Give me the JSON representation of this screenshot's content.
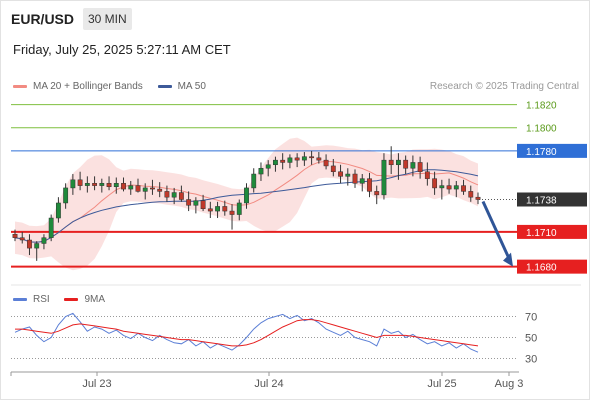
{
  "header": {
    "symbol": "EUR/USD",
    "timeframe": "30 MIN",
    "timestamp": "Friday, July 25, 2025 5:27:11 AM CET"
  },
  "legend_main": [
    {
      "label": "MA 20 + Bollinger Bands",
      "color": "#f28b82"
    },
    {
      "label": "MA 50",
      "color": "#3d5a99"
    }
  ],
  "copyright": "Research © 2025 Trading Central",
  "legend_rsi": [
    {
      "label": "RSI",
      "color": "#5b7fd6"
    },
    {
      "label": "9MA",
      "color": "#e62020"
    }
  ],
  "chart_data": [
    {
      "type": "candlestick",
      "title": "",
      "x_ticks": [
        "Jul 23",
        "Jul 24",
        "Jul 25",
        "Aug 3"
      ],
      "ylim": [
        1.1665,
        1.183
      ],
      "horizontal_lines": [
        {
          "value": 1.182,
          "label": "1.1820",
          "kind": "target",
          "color": "#7fbf3f"
        },
        {
          "value": 1.18,
          "label": "1.1800",
          "kind": "target",
          "color": "#7fbf3f"
        },
        {
          "value": 1.178,
          "label": "1.1780",
          "kind": "resistance",
          "color": "#2f6fd6"
        },
        {
          "value": 1.1738,
          "label": "1.1738",
          "kind": "last-price",
          "color": "#333333"
        },
        {
          "value": 1.171,
          "label": "1.1710",
          "kind": "pivot",
          "color": "#e62020"
        },
        {
          "value": 1.168,
          "label": "1.1680",
          "kind": "support",
          "color": "#e62020"
        }
      ],
      "forecast_arrow": {
        "from": 1.1738,
        "to": 1.168,
        "color": "#2f5597"
      },
      "series": [
        {
          "name": "MA 20 + Bollinger Bands",
          "color": "#f28b82"
        },
        {
          "name": "MA 50",
          "color": "#3d5a99"
        }
      ],
      "candles": [
        [
          1.1708,
          1.1712,
          1.1702,
          1.1705
        ],
        [
          1.1705,
          1.171,
          1.17,
          1.1703
        ],
        [
          1.1703,
          1.1708,
          1.169,
          1.1696
        ],
        [
          1.1696,
          1.1702,
          1.1685,
          1.17
        ],
        [
          1.17,
          1.1708,
          1.1695,
          1.1705
        ],
        [
          1.1705,
          1.1725,
          1.1702,
          1.1722
        ],
        [
          1.1722,
          1.174,
          1.1718,
          1.1735
        ],
        [
          1.1735,
          1.1752,
          1.173,
          1.1748
        ],
        [
          1.1748,
          1.176,
          1.1742,
          1.1755
        ],
        [
          1.1755,
          1.1762,
          1.1746,
          1.175
        ],
        [
          1.175,
          1.1758,
          1.1744,
          1.1752
        ],
        [
          1.1752,
          1.1758,
          1.1746,
          1.175
        ],
        [
          1.175,
          1.1756,
          1.1744,
          1.1752
        ],
        [
          1.1752,
          1.1758,
          1.1746,
          1.1749
        ],
        [
          1.1749,
          1.1757,
          1.1743,
          1.1752
        ],
        [
          1.1752,
          1.1757,
          1.1745,
          1.1747
        ],
        [
          1.1747,
          1.1754,
          1.1742,
          1.175
        ],
        [
          1.175,
          1.1756,
          1.1744,
          1.1745
        ],
        [
          1.1745,
          1.1752,
          1.1738,
          1.1748
        ],
        [
          1.1748,
          1.1755,
          1.1742,
          1.1747
        ],
        [
          1.1747,
          1.1753,
          1.174,
          1.1745
        ],
        [
          1.1745,
          1.175,
          1.1736,
          1.174
        ],
        [
          1.174,
          1.1748,
          1.1734,
          1.1744
        ],
        [
          1.1744,
          1.175,
          1.1736,
          1.1738
        ],
        [
          1.1738,
          1.1745,
          1.1728,
          1.1733
        ],
        [
          1.1733,
          1.174,
          1.1726,
          1.1737
        ],
        [
          1.1737,
          1.1742,
          1.1728,
          1.173
        ],
        [
          1.173,
          1.1736,
          1.1722,
          1.1728
        ],
        [
          1.1728,
          1.1736,
          1.1722,
          1.1732
        ],
        [
          1.1732,
          1.1737,
          1.1724,
          1.1728
        ],
        [
          1.1728,
          1.1734,
          1.1712,
          1.1725
        ],
        [
          1.1725,
          1.1738,
          1.172,
          1.1735
        ],
        [
          1.1735,
          1.1752,
          1.173,
          1.1748
        ],
        [
          1.1748,
          1.1765,
          1.1744,
          1.176
        ],
        [
          1.176,
          1.177,
          1.1754,
          1.1765
        ],
        [
          1.1765,
          1.1772,
          1.1758,
          1.1768
        ],
        [
          1.1768,
          1.1775,
          1.1762,
          1.1772
        ],
        [
          1.1772,
          1.1778,
          1.1764,
          1.177
        ],
        [
          1.177,
          1.1777,
          1.1765,
          1.1774
        ],
        [
          1.1774,
          1.1778,
          1.1766,
          1.1772
        ],
        [
          1.1772,
          1.1779,
          1.1767,
          1.1775
        ],
        [
          1.1775,
          1.178,
          1.1768,
          1.1774
        ],
        [
          1.1774,
          1.1779,
          1.1769,
          1.1772
        ],
        [
          1.1772,
          1.1777,
          1.1764,
          1.1767
        ],
        [
          1.1767,
          1.1773,
          1.1758,
          1.1762
        ],
        [
          1.1762,
          1.1768,
          1.1752,
          1.1758
        ],
        [
          1.1758,
          1.1765,
          1.175,
          1.176
        ],
        [
          1.176,
          1.1764,
          1.1748,
          1.1752
        ],
        [
          1.1752,
          1.176,
          1.1745,
          1.1756
        ],
        [
          1.1756,
          1.1761,
          1.174,
          1.1745
        ],
        [
          1.1745,
          1.175,
          1.1734,
          1.1742
        ],
        [
          1.1742,
          1.1778,
          1.1738,
          1.1772
        ],
        [
          1.1772,
          1.1784,
          1.176,
          1.1768
        ],
        [
          1.1768,
          1.1778,
          1.1755,
          1.1772
        ],
        [
          1.1772,
          1.1776,
          1.176,
          1.1765
        ],
        [
          1.1765,
          1.1776,
          1.1758,
          1.177
        ],
        [
          1.177,
          1.1775,
          1.1756,
          1.1762
        ],
        [
          1.1762,
          1.177,
          1.175,
          1.1756
        ],
        [
          1.1756,
          1.1762,
          1.1742,
          1.1748
        ],
        [
          1.1748,
          1.1755,
          1.1738,
          1.175
        ],
        [
          1.175,
          1.1756,
          1.1743,
          1.1747
        ],
        [
          1.1747,
          1.1754,
          1.174,
          1.175
        ],
        [
          1.175,
          1.1755,
          1.1742,
          1.1745
        ],
        [
          1.1745,
          1.175,
          1.1736,
          1.174
        ],
        [
          1.174,
          1.1744,
          1.1734,
          1.1738
        ]
      ]
    },
    {
      "type": "line",
      "title": "",
      "ylim": [
        20,
        80
      ],
      "y_ticks": [
        70,
        50,
        30
      ],
      "series": [
        {
          "name": "RSI",
          "color": "#5b7fd6",
          "values": [
            55,
            58,
            60,
            52,
            46,
            50,
            62,
            70,
            73,
            65,
            56,
            60,
            58,
            54,
            57,
            52,
            49,
            54,
            50,
            47,
            52,
            48,
            45,
            44,
            48,
            42,
            46,
            40,
            44,
            41,
            38,
            43,
            50,
            58,
            64,
            68,
            70,
            72,
            68,
            71,
            66,
            68,
            64,
            58,
            55,
            52,
            56,
            50,
            48,
            46,
            42,
            58,
            54,
            56,
            50,
            53,
            48,
            44,
            46,
            42,
            45,
            40,
            44,
            39,
            36
          ]
        },
        {
          "name": "9MA",
          "color": "#e62020",
          "values": [
            58,
            58,
            57,
            56,
            55,
            54,
            56,
            59,
            62,
            63,
            62,
            61,
            60,
            59,
            58,
            56,
            55,
            54,
            53,
            52,
            51,
            50,
            49,
            48,
            48,
            47,
            46,
            45,
            44,
            43,
            42,
            42,
            43,
            45,
            48,
            52,
            56,
            60,
            63,
            66,
            67,
            67,
            66,
            64,
            62,
            60,
            58,
            56,
            54,
            52,
            50,
            52,
            52,
            52,
            52,
            51,
            50,
            49,
            48,
            47,
            46,
            45,
            44,
            43,
            42
          ]
        }
      ]
    }
  ]
}
